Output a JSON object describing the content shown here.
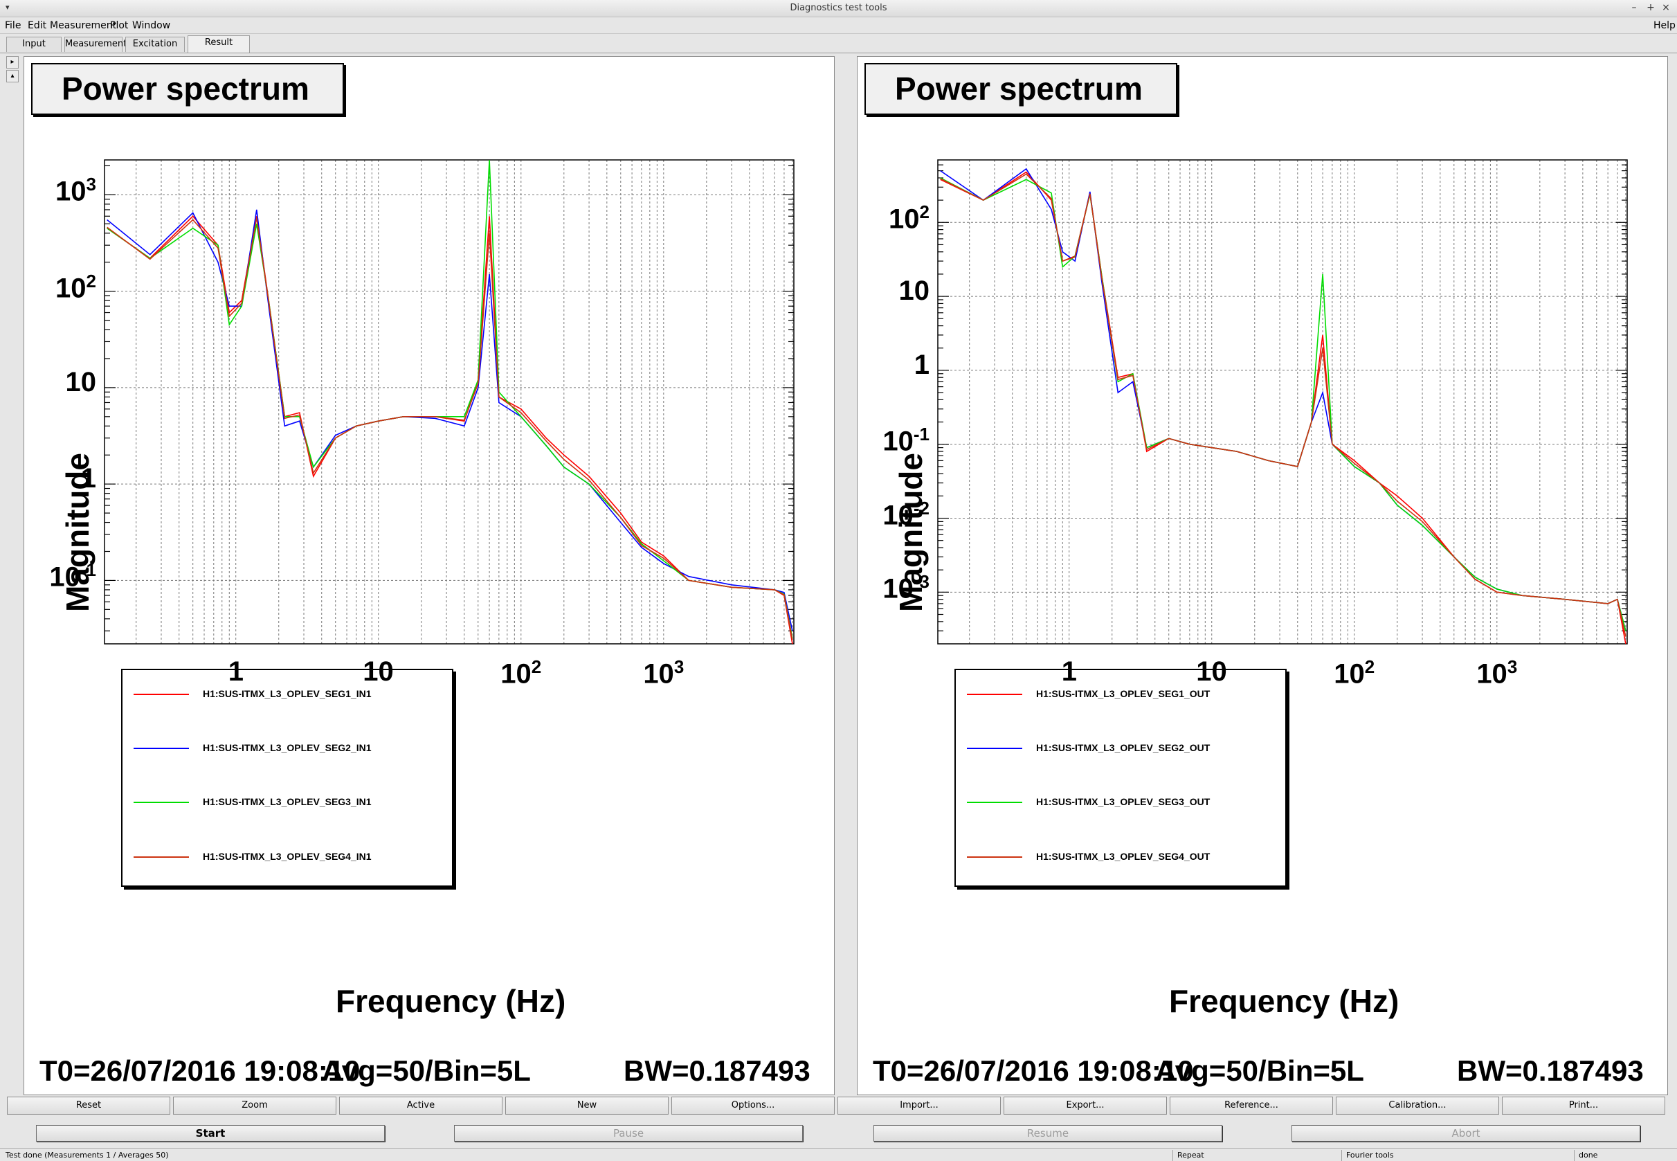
{
  "window": {
    "title": "Diagnostics test tools",
    "menu_glyph": "▾",
    "minimize_glyph": "–",
    "maximize_glyph": "+",
    "close_glyph": "×"
  },
  "menubar": {
    "items": [
      "File",
      "Edit",
      "Measurement",
      "Plot",
      "Window"
    ],
    "help": "Help"
  },
  "tabs": [
    {
      "label": "Input",
      "active": false
    },
    {
      "label": "Measurement",
      "active": false
    },
    {
      "label": "Excitation",
      "active": false
    },
    {
      "label": "Result",
      "active": true
    }
  ],
  "panels": [
    {
      "title": "Power spectrum",
      "xlabel": "Frequency (Hz)",
      "ylabel": "Magnitude",
      "footer_t0": "T0=26/07/2016 19:08:10",
      "footer_avg": "Avg=50/Bin=5L",
      "footer_bw": "BW=0.187493",
      "legend": [
        {
          "name": "H1:SUS-ITMX_L3_OPLEV_SEG1_IN1",
          "color": "#ff0000"
        },
        {
          "name": "H1:SUS-ITMX_L3_OPLEV_SEG2_IN1",
          "color": "#0000ff"
        },
        {
          "name": "H1:SUS-ITMX_L3_OPLEV_SEG3_IN1",
          "color": "#00dd00"
        },
        {
          "name": "H1:SUS-ITMX_L3_OPLEV_SEG4_IN1",
          "color": "#cc3311"
        }
      ]
    },
    {
      "title": "Power spectrum",
      "xlabel": "Frequency (Hz)",
      "ylabel": "Magnitude",
      "footer_t0": "T0=26/07/2016 19:08:10",
      "footer_avg": "Avg=50/Bin=5L",
      "footer_bw": "BW=0.187493",
      "legend": [
        {
          "name": "H1:SUS-ITMX_L3_OPLEV_SEG1_OUT",
          "color": "#ff0000"
        },
        {
          "name": "H1:SUS-ITMX_L3_OPLEV_SEG2_OUT",
          "color": "#0000ff"
        },
        {
          "name": "H1:SUS-ITMX_L3_OPLEV_SEG3_OUT",
          "color": "#00dd00"
        },
        {
          "name": "H1:SUS-ITMX_L3_OPLEV_SEG4_OUT",
          "color": "#cc3311"
        }
      ]
    }
  ],
  "chart_data": [
    {
      "type": "line",
      "title": "Power spectrum",
      "xlabel": "Frequency (Hz)",
      "ylabel": "Magnitude",
      "xscale": "log",
      "yscale": "log",
      "xlim": [
        0.12,
        8192
      ],
      "ylim": [
        0.022,
        2300
      ],
      "xticks": [
        "1",
        "10",
        "10^2",
        "10^3"
      ],
      "yticks": [
        "10^3",
        "10^2",
        "10",
        "1",
        "10^-1"
      ],
      "grid": true,
      "legend_position": "bottom-left",
      "series": [
        {
          "name": "H1:SUS-ITMX_L3_OPLEV_SEG1_IN1",
          "x": [
            0.125,
            0.25,
            0.5,
            0.75,
            0.9,
            1.1,
            1.4,
            1.7,
            2.2,
            2.8,
            3.5,
            5,
            7,
            10,
            15,
            25,
            40,
            50,
            60,
            70,
            100,
            150,
            200,
            300,
            500,
            700,
            1000,
            1500,
            3000,
            6000,
            7000,
            8000
          ],
          "y": [
            450,
            220,
            600,
            300,
            60,
            80,
            600,
            80,
            5,
            5.5,
            1.2,
            3,
            4,
            4.5,
            5,
            5,
            4.5,
            12,
            600,
            8,
            6,
            3,
            2,
            1.2,
            0.5,
            0.25,
            0.18,
            0.1,
            0.085,
            0.08,
            0.07,
            0.022
          ]
        },
        {
          "name": "H1:SUS-ITMX_L3_OPLEV_SEG2_IN1",
          "x": [
            0.125,
            0.25,
            0.5,
            0.75,
            0.9,
            1.1,
            1.4,
            1.7,
            2.2,
            2.8,
            3.5,
            5,
            7,
            10,
            15,
            25,
            40,
            50,
            60,
            70,
            100,
            150,
            200,
            300,
            500,
            700,
            1000,
            1500,
            3000,
            6000,
            7000,
            8000
          ],
          "y": [
            550,
            240,
            650,
            200,
            70,
            70,
            700,
            70,
            4,
            4.5,
            1.5,
            3.2,
            4,
            4.5,
            5,
            4.8,
            4,
            10,
            150,
            7,
            5,
            2.5,
            1.5,
            1,
            0.4,
            0.22,
            0.15,
            0.11,
            0.09,
            0.08,
            0.075,
            0.03
          ]
        },
        {
          "name": "H1:SUS-ITMX_L3_OPLEV_SEG3_IN1",
          "x": [
            0.125,
            0.25,
            0.5,
            0.75,
            0.9,
            1.1,
            1.4,
            1.7,
            2.2,
            2.8,
            3.5,
            5,
            7,
            10,
            15,
            25,
            40,
            50,
            60,
            70,
            100,
            150,
            200,
            300,
            500,
            700,
            1000,
            1500,
            3000,
            6000,
            7000,
            8000
          ],
          "y": [
            450,
            220,
            450,
            300,
            45,
            70,
            500,
            80,
            5,
            5,
            1.5,
            3,
            4,
            4.5,
            5,
            5,
            5,
            12,
            2300,
            9,
            5,
            2.5,
            1.5,
            1,
            0.45,
            0.24,
            0.16,
            0.1,
            0.085,
            0.08,
            0.072,
            0.025
          ]
        },
        {
          "name": "H1:SUS-ITMX_L3_OPLEV_SEG4_IN1",
          "x": [
            0.125,
            0.25,
            0.5,
            0.75,
            0.9,
            1.1,
            1.4,
            1.7,
            2.2,
            2.8,
            3.5,
            5,
            7,
            10,
            15,
            25,
            40,
            50,
            60,
            70,
            100,
            150,
            200,
            300,
            500,
            700,
            1000,
            1500,
            3000,
            6000,
            7000,
            8000
          ],
          "y": [
            460,
            215,
            550,
            280,
            55,
            75,
            580,
            78,
            4.8,
            5.2,
            1.3,
            3,
            4,
            4.5,
            5,
            5,
            4.6,
            11,
            400,
            8,
            5.5,
            2.8,
            1.8,
            1.1,
            0.45,
            0.23,
            0.17,
            0.1,
            0.085,
            0.08,
            0.071,
            0.024
          ]
        }
      ]
    },
    {
      "type": "line",
      "title": "Power spectrum",
      "xlabel": "Frequency (Hz)",
      "ylabel": "Magnitude",
      "xscale": "log",
      "yscale": "log",
      "xlim": [
        0.12,
        8192
      ],
      "ylim": [
        0.0002,
        700
      ],
      "xticks": [
        "1",
        "10",
        "10^2",
        "10^3"
      ],
      "yticks": [
        "10^2",
        "10",
        "1",
        "10^-1",
        "10^-2",
        "10^-3"
      ],
      "grid": true,
      "legend_position": "bottom-left",
      "series": [
        {
          "name": "H1:SUS-ITMX_L3_OPLEV_SEG1_OUT",
          "x": [
            0.125,
            0.25,
            0.5,
            0.75,
            0.9,
            1.1,
            1.4,
            1.7,
            2.2,
            2.8,
            3.5,
            5,
            7,
            10,
            15,
            25,
            40,
            50,
            60,
            70,
            100,
            150,
            200,
            300,
            500,
            700,
            1000,
            1500,
            3000,
            6000,
            7000,
            8000
          ],
          "y": [
            380,
            200,
            480,
            200,
            30,
            35,
            250,
            18,
            0.8,
            0.9,
            0.08,
            0.12,
            0.1,
            0.09,
            0.08,
            0.06,
            0.05,
            0.2,
            3,
            0.1,
            0.06,
            0.03,
            0.02,
            0.01,
            0.003,
            0.0015,
            0.001,
            0.0009,
            0.0008,
            0.0007,
            0.0008,
            0.0002
          ]
        },
        {
          "name": "H1:SUS-ITMX_L3_OPLEV_SEG2_OUT",
          "x": [
            0.125,
            0.25,
            0.5,
            0.75,
            0.9,
            1.1,
            1.4,
            1.7,
            2.2,
            2.8,
            3.5,
            5,
            7,
            10,
            15,
            25,
            40,
            50,
            60,
            70,
            100,
            150,
            200,
            300,
            500,
            700,
            1000,
            1500,
            3000,
            6000,
            7000,
            8000
          ],
          "y": [
            500,
            200,
            530,
            150,
            40,
            30,
            260,
            15,
            0.5,
            0.7,
            0.09,
            0.12,
            0.1,
            0.09,
            0.08,
            0.06,
            0.05,
            0.2,
            0.5,
            0.1,
            0.05,
            0.03,
            0.015,
            0.008,
            0.003,
            0.0016,
            0.0011,
            0.0009,
            0.0008,
            0.0007,
            0.0008,
            0.0003
          ]
        },
        {
          "name": "H1:SUS-ITMX_L3_OPLEV_SEG3_OUT",
          "x": [
            0.125,
            0.25,
            0.5,
            0.75,
            0.9,
            1.1,
            1.4,
            1.7,
            2.2,
            2.8,
            3.5,
            5,
            7,
            10,
            15,
            25,
            40,
            50,
            60,
            70,
            100,
            150,
            200,
            300,
            500,
            700,
            1000,
            1500,
            3000,
            6000,
            7000,
            8000
          ],
          "y": [
            400,
            200,
            380,
            250,
            25,
            35,
            240,
            18,
            0.7,
            0.9,
            0.09,
            0.12,
            0.1,
            0.09,
            0.08,
            0.06,
            0.05,
            0.2,
            20,
            0.1,
            0.05,
            0.03,
            0.015,
            0.008,
            0.003,
            0.0016,
            0.0011,
            0.0009,
            0.0008,
            0.0007,
            0.0008,
            0.0003
          ]
        },
        {
          "name": "H1:SUS-ITMX_L3_OPLEV_SEG4_OUT",
          "x": [
            0.125,
            0.25,
            0.5,
            0.75,
            0.9,
            1.1,
            1.4,
            1.7,
            2.2,
            2.8,
            3.5,
            5,
            7,
            10,
            15,
            25,
            40,
            50,
            60,
            70,
            100,
            150,
            200,
            300,
            500,
            700,
            1000,
            1500,
            3000,
            6000,
            7000,
            8000
          ],
          "y": [
            390,
            200,
            450,
            210,
            30,
            34,
            245,
            17,
            0.75,
            0.85,
            0.085,
            0.12,
            0.1,
            0.09,
            0.08,
            0.06,
            0.05,
            0.2,
            2,
            0.1,
            0.055,
            0.03,
            0.017,
            0.009,
            0.003,
            0.0015,
            0.001,
            0.0009,
            0.0008,
            0.0007,
            0.0008,
            0.00025
          ]
        }
      ]
    }
  ],
  "toolbar": {
    "buttons": [
      "Reset",
      "Zoom",
      "Active",
      "New",
      "Options...",
      "Import...",
      "Export...",
      "Reference...",
      "Calibration...",
      "Print..."
    ]
  },
  "controls": {
    "start": "Start",
    "pause": "Pause",
    "resume": "Resume",
    "abort": "Abort"
  },
  "status": {
    "message": "Test done (Measurements 1 / Averages 50)",
    "repeat": "Repeat",
    "fourier": "Fourier tools",
    "state": "done"
  }
}
